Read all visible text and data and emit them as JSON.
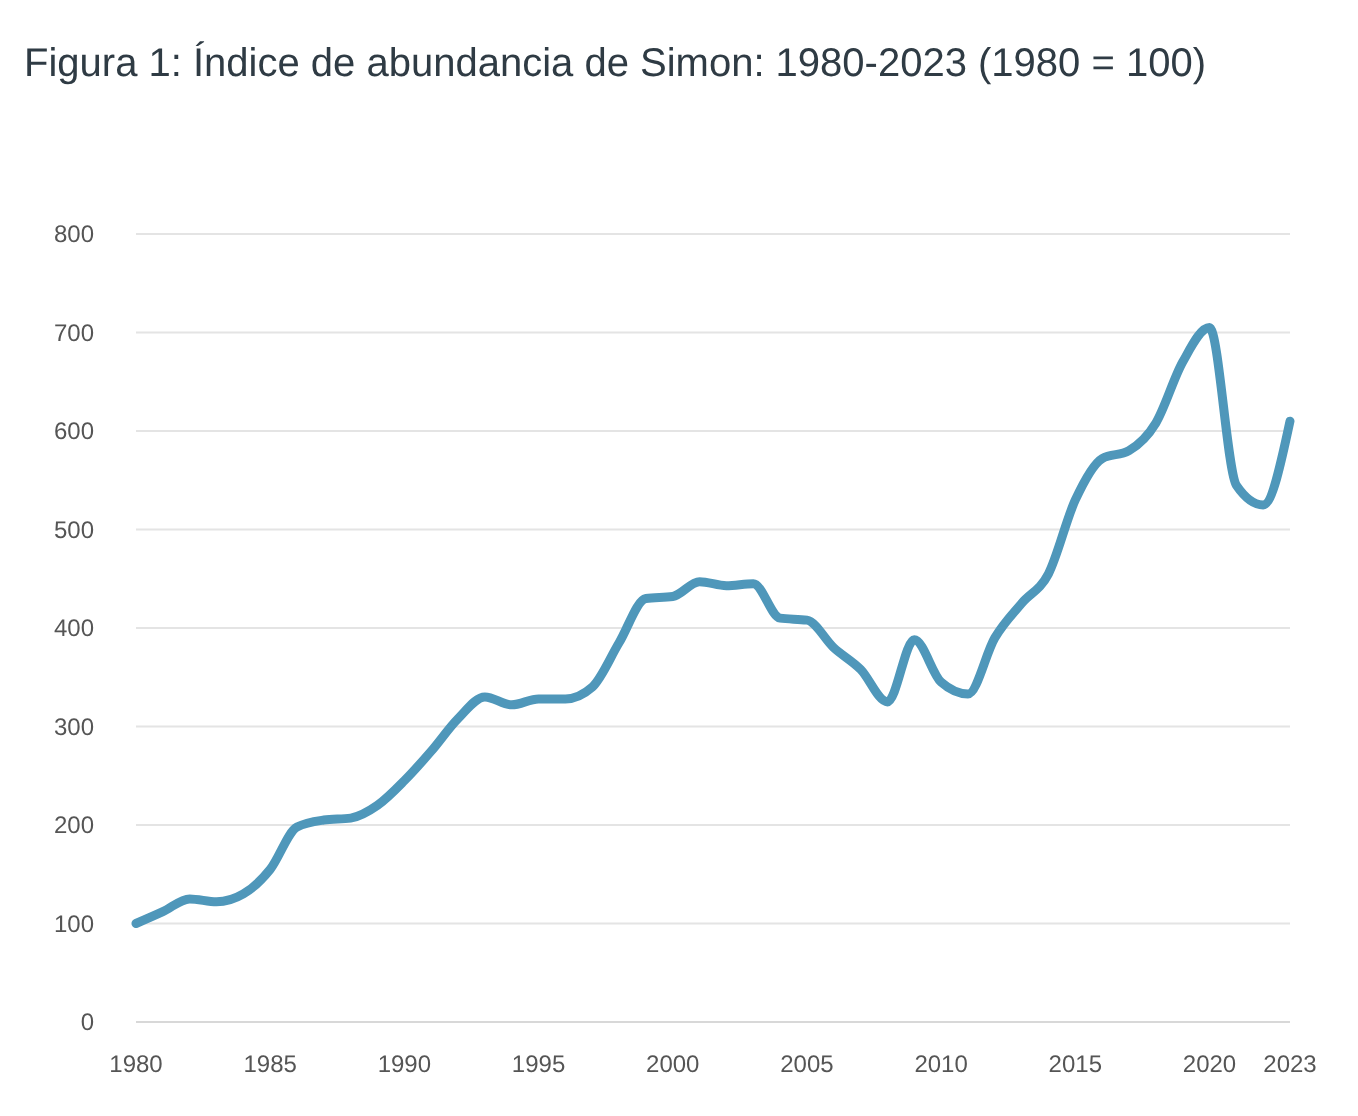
{
  "chart_data": {
    "type": "line",
    "title": "Figura 1: Índice de abundancia de Simon: 1980-2023 (1980 = 100)",
    "x": [
      1980,
      1981,
      1982,
      1983,
      1984,
      1985,
      1986,
      1987,
      1988,
      1989,
      1990,
      1991,
      1992,
      1993,
      1994,
      1995,
      1996,
      1997,
      1998,
      1999,
      2000,
      2001,
      2002,
      2003,
      2004,
      2005,
      2006,
      2007,
      2008,
      2009,
      2010,
      2011,
      2012,
      2013,
      2014,
      2015,
      2016,
      2017,
      2018,
      2019,
      2020,
      2021,
      2022,
      2023
    ],
    "series": [
      {
        "color": "#4f97ba",
        "values": [
          100,
          112,
          125,
          122,
          130,
          155,
          198,
          205,
          207,
          220,
          245,
          275,
          308,
          330,
          322,
          328,
          328,
          340,
          385,
          430,
          432,
          447,
          443,
          445,
          410,
          408,
          380,
          358,
          325,
          388,
          345,
          333,
          390,
          425,
          455,
          530,
          572,
          580,
          608,
          670,
          705,
          545,
          525,
          610
        ]
      }
    ],
    "xlim": [
      1980,
      2023
    ],
    "xticks": [
      1980,
      1985,
      1990,
      1995,
      2000,
      2005,
      2010,
      2015,
      2020,
      2023
    ],
    "ylim": [
      0,
      800
    ],
    "yticks": [
      0,
      100,
      200,
      300,
      400,
      500,
      600,
      700,
      800
    ],
    "grid": "y",
    "marker": "none",
    "line_style": "solid"
  }
}
